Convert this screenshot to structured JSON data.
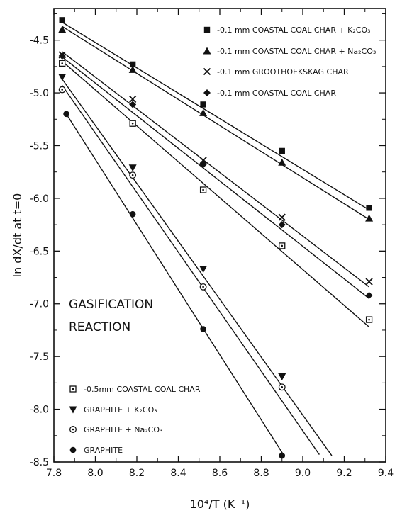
{
  "chart_data": {
    "type": "scatter",
    "title": "",
    "xlabel": "10⁴/T (K⁻¹)",
    "ylabel": "ln dX/dt at t=0",
    "xlim": [
      7.8,
      9.4
    ],
    "ylim": [
      -8.5,
      -4.2
    ],
    "x_ticks": [
      "7.8",
      "8.0",
      "8.2",
      "8.4",
      "8.6",
      "8.8",
      "9.0",
      "9.2",
      "9.4"
    ],
    "y_ticks": [
      "-4.5",
      "-5.0",
      "-5.5",
      "-6.0",
      "-6.5",
      "-7.0",
      "-7.5",
      "-8.0",
      "-8.5"
    ],
    "annotation": [
      "GASIFICATION",
      "REACTION"
    ],
    "series": [
      {
        "name": "-0.1 mm COASTAL COAL CHAR + K₂CO₃",
        "marker": "square-filled",
        "x": [
          7.84,
          8.18,
          8.52,
          8.9,
          9.32
        ],
        "y": [
          -4.31,
          -4.73,
          -5.11,
          -5.55,
          -6.09
        ],
        "fit": [
          [
            7.84,
            -4.33
          ],
          [
            9.32,
            -6.11
          ]
        ]
      },
      {
        "name": "-0.1 mm COASTAL COAL CHAR + Na₂CO₃",
        "marker": "triangle-up-filled",
        "x": [
          7.84,
          8.18,
          8.52,
          8.9,
          9.32
        ],
        "y": [
          -4.4,
          -4.78,
          -5.19,
          -5.66,
          -6.19
        ],
        "fit": [
          [
            7.84,
            -4.37
          ],
          [
            9.32,
            -6.2
          ]
        ]
      },
      {
        "name": "-0.1 mm GROOTHOEKSKAG CHAR",
        "marker": "x",
        "x": [
          7.84,
          8.18,
          8.52,
          8.9,
          9.32
        ],
        "y": [
          -4.64,
          -5.06,
          -5.64,
          -6.18,
          -6.79
        ],
        "fit": [
          [
            7.84,
            -4.61
          ],
          [
            9.32,
            -6.84
          ]
        ]
      },
      {
        "name": "-0.1 mm COASTAL COAL CHAR",
        "marker": "diamond-filled",
        "x": [
          7.84,
          8.18,
          8.52,
          8.9,
          9.32
        ],
        "y": [
          -4.65,
          -5.11,
          -5.68,
          -6.25,
          -6.92
        ],
        "fit": [
          [
            7.84,
            -4.66
          ],
          [
            9.32,
            -6.95
          ]
        ]
      },
      {
        "name": "-0.5mm COASTAL COAL CHAR",
        "marker": "square-dot",
        "x": [
          7.84,
          8.18,
          8.52,
          8.9,
          9.32
        ],
        "y": [
          -4.72,
          -5.29,
          -5.92,
          -6.45,
          -7.15
        ],
        "fit": [
          [
            7.84,
            -4.7
          ],
          [
            9.32,
            -7.22
          ]
        ]
      },
      {
        "name": "GRAPHITE + K₂CO₃",
        "marker": "triangle-down-filled",
        "x": [
          7.84,
          8.18,
          8.52,
          8.9
        ],
        "y": [
          -4.85,
          -5.71,
          -6.67,
          -7.69
        ],
        "fit": [
          [
            7.84,
            -4.87
          ],
          [
            9.14,
            -8.44
          ]
        ]
      },
      {
        "name": "GRAPHITE + Na₂CO₃",
        "marker": "circle-dot",
        "x": [
          7.84,
          8.18,
          8.52,
          8.9
        ],
        "y": [
          -4.97,
          -5.78,
          -6.84,
          -7.79
        ],
        "fit": [
          [
            7.84,
            -4.93
          ],
          [
            9.08,
            -8.43
          ]
        ]
      },
      {
        "name": "GRAPHITE",
        "marker": "circle-filled",
        "x": [
          7.86,
          8.18,
          8.52,
          8.9
        ],
        "y": [
          -5.2,
          -6.15,
          -7.24,
          -8.44
        ],
        "fit": [
          [
            7.86,
            -5.2
          ],
          [
            8.91,
            -8.44
          ]
        ]
      }
    ]
  }
}
